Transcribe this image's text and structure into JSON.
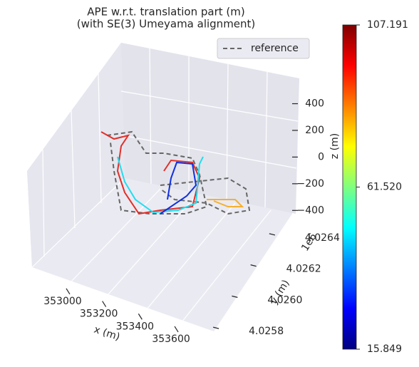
{
  "chart_data": {
    "type": "trajectory3d",
    "title": "APE w.r.t. translation part (m)",
    "subtitle": "(with SE(3) Umeyama alignment)",
    "legend": [
      "reference"
    ],
    "xlabel": "x (m)",
    "ylabel": "y (m)",
    "zlabel": "z (m)",
    "y_offset": "1e6",
    "xlim": [
      352900,
      353700
    ],
    "xticks": [
      353000,
      353200,
      353400,
      353600
    ],
    "ylim": [
      4.0257,
      4.0265
    ],
    "yticks": [
      4.0258,
      {
        "value": 4.026,
        "label": "4.0260"
      },
      4.0262,
      4.0264
    ],
    "zlim": [
      -500,
      500
    ],
    "zticks": [
      400,
      200,
      0,
      {
        "value": -200,
        "label": "−200"
      },
      {
        "value": -400,
        "label": "−400"
      }
    ],
    "clim": [
      15.849,
      107.191
    ],
    "cticks": [
      15.849,
      {
        "value": 61.52,
        "label": "61.520"
      },
      107.191
    ]
  }
}
